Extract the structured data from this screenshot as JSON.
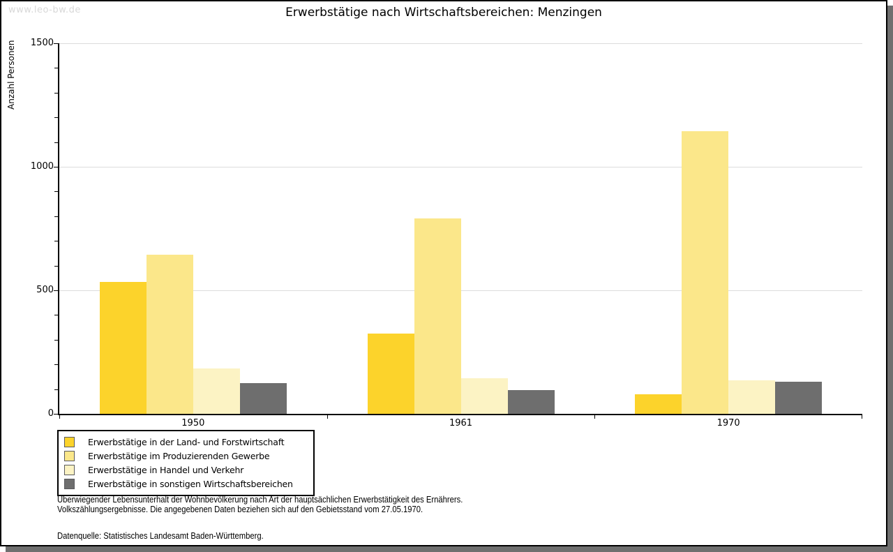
{
  "watermark": "www.leo-bw.de",
  "title": "Erwerbstätige nach Wirtschaftsbereichen: Menzingen",
  "chart_data": {
    "type": "bar",
    "title": "Erwerbstätige nach Wirtschaftsbereichen: Menzingen",
    "xlabel": "",
    "ylabel": "Anzahl Personen",
    "categories": [
      "1950",
      "1961",
      "1970"
    ],
    "series": [
      {
        "name": "Erwerbstätige in der Land- und Forstwirtschaft",
        "color": "#FCD32B",
        "values": [
          535,
          325,
          80
        ]
      },
      {
        "name": "Erwerbstätige im Produzierenden Gewerbe",
        "color": "#FBE78A",
        "values": [
          645,
          790,
          1145
        ]
      },
      {
        "name": "Erwerbstätige in Handel und Verkehr",
        "color": "#FCF3C4",
        "values": [
          185,
          145,
          135
        ]
      },
      {
        "name": "Erwerbstätige in sonstigen Wirtschaftsbereichen",
        "color": "#6E6E6E",
        "values": [
          125,
          95,
          130
        ]
      }
    ],
    "ylim": [
      0,
      1500
    ],
    "yticks": [
      0,
      500,
      1000,
      1500
    ],
    "minor_tick_step": 100,
    "grid": true,
    "gridline_color": "#DCDCDC",
    "legend_position": "bottom-left"
  },
  "footer": {
    "line1": "Überwiegender Lebensunterhalt der Wohnbevölkerung nach Art der hauptsächlichen Erwerbstätigkeit des Ernährers.",
    "line2": "Volkszählungsergebnisse. Die angegebenen Daten beziehen sich auf den Gebietsstand vom 27.05.1970.",
    "source": "Datenquelle: Statistisches Landesamt Baden-Württemberg."
  }
}
